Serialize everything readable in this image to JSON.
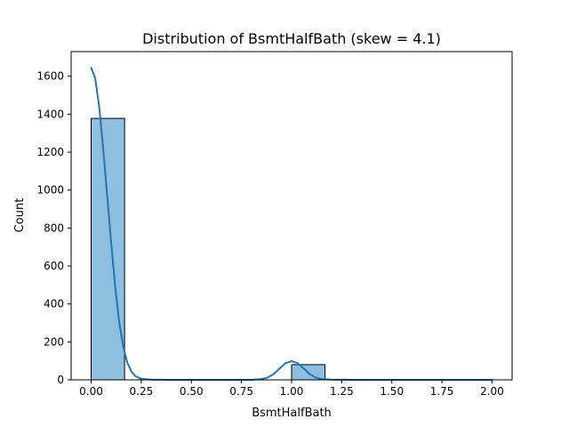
{
  "chart_data": {
    "type": "bar",
    "title": "Distribution of BsmtHalfBath (skew = 4.1)",
    "xlabel": "BsmtHalfBath",
    "ylabel": "Count",
    "xlim": [
      -0.1,
      2.1
    ],
    "ylim": [
      0,
      1730
    ],
    "xticks": [
      "0.00",
      "0.25",
      "0.50",
      "0.75",
      "1.00",
      "1.25",
      "1.50",
      "1.75",
      "2.00"
    ],
    "yticks": [
      "0",
      "200",
      "400",
      "600",
      "800",
      "1000",
      "1200",
      "1400",
      "1600"
    ],
    "bins": [
      {
        "x0": 0.0,
        "x1": 0.1667,
        "count": 1378
      },
      {
        "x0": 1.0,
        "x1": 1.1667,
        "count": 80
      }
    ],
    "kde": {
      "x": [
        0.0,
        0.02,
        0.04,
        0.06,
        0.08,
        0.1,
        0.12,
        0.14,
        0.16,
        0.18,
        0.2,
        0.22,
        0.25,
        0.3,
        0.4,
        0.6,
        0.8,
        0.85,
        0.88,
        0.91,
        0.94,
        0.97,
        1.0,
        1.03,
        1.06,
        1.09,
        1.12,
        1.15,
        1.2,
        1.3,
        1.5,
        1.75,
        2.0
      ],
      "y": [
        1645,
        1590,
        1440,
        1220,
        970,
        720,
        490,
        305,
        175,
        92,
        45,
        20,
        5,
        1,
        0,
        0,
        0,
        4,
        12,
        30,
        60,
        88,
        98,
        88,
        60,
        30,
        12,
        4,
        1,
        0,
        0,
        0,
        0
      ]
    },
    "bar_fill": "#8ebfe0",
    "bar_edge": "#000000",
    "line_color": "#1f77b4",
    "grid": false,
    "legend": "none"
  }
}
